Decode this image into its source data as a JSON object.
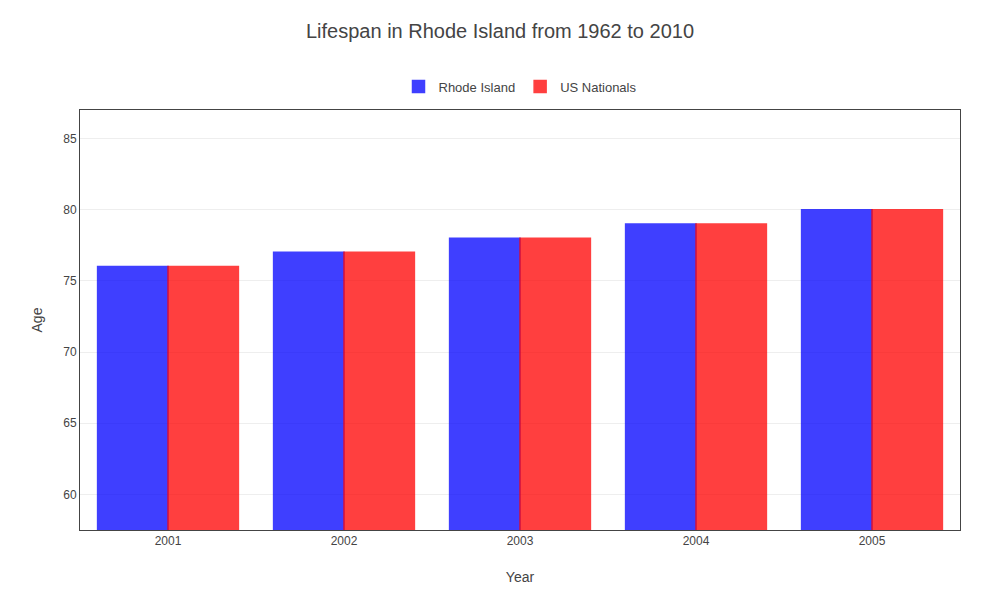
{
  "chart_data": {
    "type": "bar",
    "title": "Lifespan in Rhode Island from 1962 to 2010",
    "x_label": "Year",
    "y_label": "Age",
    "categories": [
      "2001",
      "2002",
      "2003",
      "2004",
      "2005"
    ],
    "series": [
      {
        "name": "Rhode Island",
        "color": "#0000ff",
        "values": [
          76,
          77,
          78,
          79,
          80
        ]
      },
      {
        "name": "US Nationals",
        "color": "#ff0000",
        "values": [
          76,
          77,
          78,
          79,
          80
        ]
      }
    ],
    "ylim": [
      57.5,
      87
    ],
    "yticks": [
      60,
      65,
      70,
      75,
      80,
      85
    ],
    "grid": true,
    "legend": "top"
  }
}
